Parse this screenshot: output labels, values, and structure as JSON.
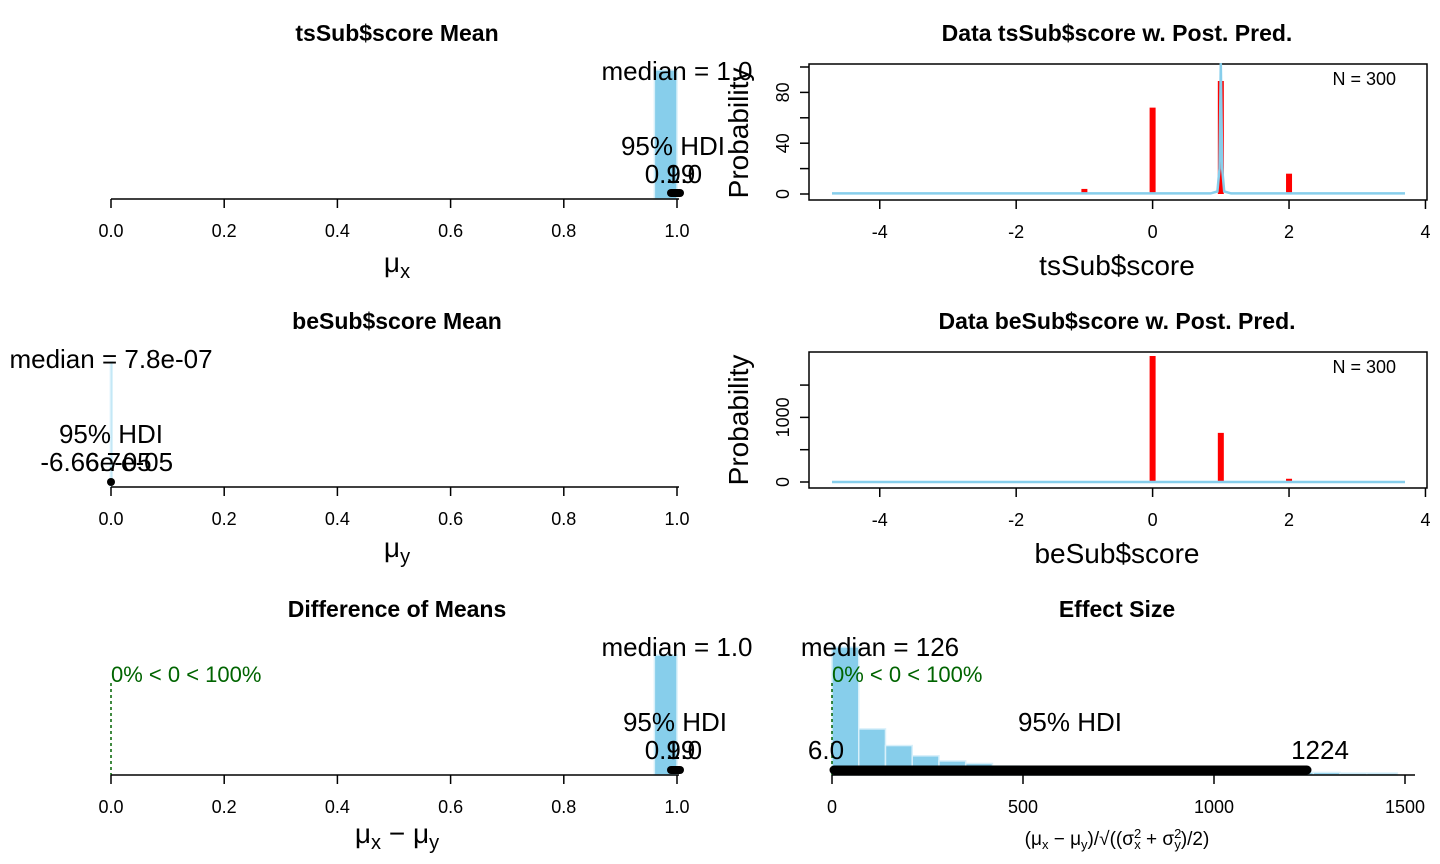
{
  "chart_data": [
    {
      "type": "histogram",
      "title": "tsSub$score Mean",
      "xlabel": "μ_x",
      "xlim": [
        0,
        1
      ],
      "xticks": [
        "0.0",
        "0.2",
        "0.4",
        "0.6",
        "0.8",
        "1.0"
      ],
      "median_label": "median = 1.0",
      "hdi_label": "95% HDI",
      "hdi": [
        0.99,
        1.0
      ],
      "hdi_low_label": "0.99",
      "hdi_high_label": "1.0",
      "bars": [
        {
          "x0": 0.96,
          "x1": 1.0,
          "h": 1.0
        }
      ]
    },
    {
      "type": "bar",
      "title": "Data tsSub$score w. Post. Pred.",
      "xlabel": "tsSub$score",
      "ylabel": "Probability",
      "n_label": "N = 300",
      "xlim": [
        -4.7,
        3.7
      ],
      "ylim": [
        0,
        100
      ],
      "xticks": [
        "-4",
        "-2",
        "0",
        "2",
        "4"
      ],
      "yticks": [
        "0",
        "40",
        "80"
      ],
      "bars": [
        {
          "x": -1,
          "y": 4
        },
        {
          "x": 0,
          "y": 68
        },
        {
          "x": 1,
          "y": 89
        },
        {
          "x": 2,
          "y": 16
        }
      ],
      "pp_curve": [
        [
          -4.7,
          0.5
        ],
        [
          0.85,
          0.5
        ],
        [
          0.95,
          2
        ],
        [
          0.98,
          20
        ],
        [
          1.0,
          103
        ],
        [
          1.02,
          20
        ],
        [
          1.05,
          2
        ],
        [
          1.15,
          0.5
        ],
        [
          3.7,
          0.5
        ]
      ]
    },
    {
      "type": "histogram",
      "title": "beSub$score Mean",
      "xlabel": "μ_y",
      "xlim": [
        0,
        1
      ],
      "xticks": [
        "0.0",
        "0.2",
        "0.4",
        "0.6",
        "0.8",
        "1.0"
      ],
      "median_label": "median = 7.8e-07",
      "hdi_label": "95% HDI",
      "hdi": [
        -6.66e-05,
        6.7e-05
      ],
      "hdi_low_label": "-6.66e-05",
      "hdi_high_label": "6.7e-05",
      "bars": [
        {
          "x0": -0.001,
          "x1": 0.002,
          "h": 1.0
        }
      ]
    },
    {
      "type": "bar",
      "title": "Data beSub$score w. Post. Pred.",
      "xlabel": "beSub$score",
      "ylabel": "Probability",
      "n_label": "N = 300",
      "xlim": [
        -4.7,
        3.7
      ],
      "ylim": [
        0,
        1950
      ],
      "xticks": [
        "-4",
        "-2",
        "0",
        "2",
        "4"
      ],
      "yticks": [
        "0",
        "1000"
      ],
      "bars": [
        {
          "x": 0,
          "y": 1950
        },
        {
          "x": 1,
          "y": 760
        },
        {
          "x": 2,
          "y": 50
        }
      ],
      "pp_curve": [
        [
          -4.7,
          0.5
        ],
        [
          3.7,
          0.5
        ]
      ]
    },
    {
      "type": "histogram",
      "title": "Difference of Means",
      "xlabel": "μ_x − μ_y",
      "xlim": [
        0,
        1
      ],
      "xticks": [
        "0.0",
        "0.2",
        "0.4",
        "0.6",
        "0.8",
        "1.0"
      ],
      "median_label": "median = 1.0",
      "comp_label": "0% < 0 < 100%",
      "hdi_label": "95% HDI",
      "hdi": [
        0.99,
        1.0
      ],
      "hdi_low_label": "0.99",
      "hdi_high_label": "1.0",
      "bars": [
        {
          "x0": 0.96,
          "x1": 1.0,
          "h": 1.0
        }
      ]
    },
    {
      "type": "histogram",
      "title": "Effect Size",
      "xlabel": "(μ_x − μ_y)/√((σ²_x + σ²_y)/2)",
      "xlim": [
        0,
        1500
      ],
      "xticks": [
        "0",
        "500",
        "1000",
        "1500"
      ],
      "median_label": "median = 126",
      "comp_label": "0% < 0 < 100%",
      "hdi_label": "95% HDI",
      "hdi": [
        6.0,
        1224
      ],
      "hdi_low_label": "6.0",
      "hdi_high_label": "1224",
      "bars": [
        {
          "x0": 0,
          "x1": 70,
          "h": 1.0
        },
        {
          "x0": 70,
          "x1": 140,
          "h": 0.36
        },
        {
          "x0": 140,
          "x1": 210,
          "h": 0.23
        },
        {
          "x0": 210,
          "x1": 280,
          "h": 0.15
        },
        {
          "x0": 280,
          "x1": 350,
          "h": 0.11
        },
        {
          "x0": 350,
          "x1": 420,
          "h": 0.09
        },
        {
          "x0": 420,
          "x1": 490,
          "h": 0.07
        },
        {
          "x0": 490,
          "x1": 560,
          "h": 0.06
        },
        {
          "x0": 560,
          "x1": 630,
          "h": 0.05
        },
        {
          "x0": 630,
          "x1": 700,
          "h": 0.04
        },
        {
          "x0": 700,
          "x1": 770,
          "h": 0.04
        },
        {
          "x0": 770,
          "x1": 840,
          "h": 0.035
        },
        {
          "x0": 840,
          "x1": 910,
          "h": 0.03
        },
        {
          "x0": 910,
          "x1": 980,
          "h": 0.03
        },
        {
          "x0": 980,
          "x1": 1050,
          "h": 0.025
        },
        {
          "x0": 1050,
          "x1": 1120,
          "h": 0.025
        },
        {
          "x0": 1120,
          "x1": 1190,
          "h": 0.02
        },
        {
          "x0": 1190,
          "x1": 1260,
          "h": 0.02
        },
        {
          "x0": 1260,
          "x1": 1330,
          "h": 0.02
        },
        {
          "x0": 1330,
          "x1": 1400,
          "h": 0.015
        },
        {
          "x0": 1400,
          "x1": 1480,
          "h": 0.015
        }
      ]
    }
  ]
}
